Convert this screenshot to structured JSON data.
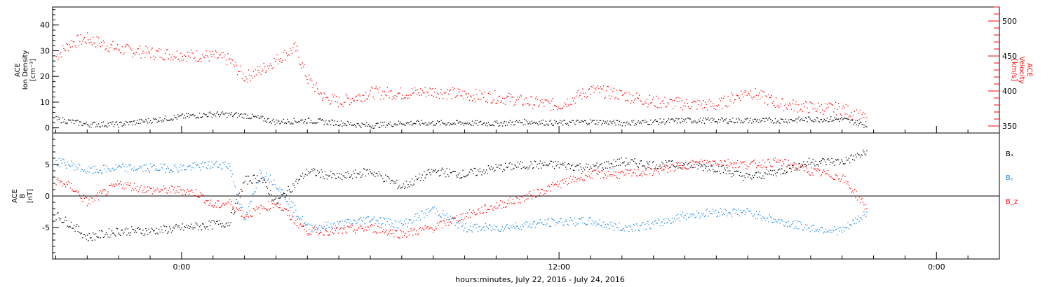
{
  "colors": {
    "black": "#000000",
    "red": "#ff0000",
    "blue": "#1e88e5"
  },
  "chart_data": [
    {
      "type": "scatter",
      "panel": "top",
      "left_axis": {
        "label_lines": [
          "ACE",
          "Ion Density",
          "[cm⁻³]"
        ],
        "ylim": [
          -2,
          47
        ],
        "ticks": [
          0,
          10,
          20,
          30,
          40
        ],
        "color": "#000000"
      },
      "right_axis": {
        "label_lines": [
          "ACE",
          "Velocity",
          "[km/s]"
        ],
        "ylim": [
          340,
          520
        ],
        "ticks": [
          350,
          400,
          450,
          500
        ],
        "color": "#ff0000"
      },
      "series": [
        {
          "axis": "left",
          "color": "#000000",
          "x": [
            -4,
            -3,
            -2,
            -1,
            0,
            1,
            2,
            3,
            4,
            5,
            6,
            7,
            8,
            9,
            10,
            11,
            12,
            13,
            14,
            15,
            16,
            17,
            18,
            19,
            20,
            21,
            21.8
          ],
          "y": [
            3.5,
            1.5,
            1.5,
            3,
            4.5,
            5.5,
            5,
            2.5,
            3,
            2,
            1,
            2,
            2,
            2,
            1.8,
            2.5,
            2,
            2.5,
            2,
            2.5,
            3,
            3,
            3,
            3,
            3.5,
            3.5,
            1
          ]
        },
        {
          "axis": "right",
          "color": "#ff0000",
          "x": [
            -4,
            -3.5,
            -3,
            -2,
            -1,
            0,
            1,
            1.5,
            2,
            2.5,
            3,
            3.6,
            4,
            4.5,
            5,
            6,
            7,
            8,
            9,
            10,
            11,
            12,
            13,
            14,
            15,
            16,
            17,
            18,
            19,
            20,
            21,
            21.8
          ],
          "y": [
            450,
            470,
            475,
            460,
            455,
            452,
            450,
            445,
            420,
            430,
            445,
            462,
            418,
            392,
            385,
            398,
            397,
            400,
            395,
            392,
            385,
            380,
            402,
            395,
            385,
            382,
            380,
            400,
            382,
            377,
            375,
            360
          ]
        }
      ]
    },
    {
      "type": "scatter",
      "panel": "bottom",
      "left_axis": {
        "label_lines": [
          "ACE",
          "B",
          "[nT]"
        ],
        "ylim": [
          -10,
          10
        ],
        "ticks": [
          -5,
          0,
          5
        ],
        "color": "#000000"
      },
      "legend": [
        {
          "name": "Bₓ",
          "color": "#000000"
        },
        {
          "name": "Bᵧ",
          "color": "#1e88e5"
        },
        {
          "name": "B_z",
          "color": "#ff0000"
        }
      ],
      "series": [
        {
          "name": "Bx",
          "color": "#000000",
          "x": [
            -4,
            -3.5,
            -3,
            -2,
            -1,
            0,
            1,
            1.5,
            2,
            2.5,
            3,
            4,
            5,
            6,
            7,
            8,
            9,
            10,
            11,
            12,
            13,
            14,
            15,
            16,
            17,
            18,
            19,
            20,
            21,
            21.8
          ],
          "y": [
            -3,
            -4.5,
            -6.5,
            -5.5,
            -5.5,
            -5,
            -4.5,
            -4.2,
            2.5,
            3,
            -1,
            4,
            3,
            4,
            1.5,
            4,
            3.5,
            4.5,
            5,
            5,
            4.5,
            5.5,
            5,
            5,
            4.5,
            3,
            4,
            5.5,
            5.5,
            7
          ]
        },
        {
          "name": "By",
          "color": "#1e88e5",
          "x": [
            -4,
            -3.5,
            -3,
            -2,
            -1,
            0,
            1,
            1.5,
            2,
            2.5,
            3,
            4,
            5,
            6,
            7,
            8,
            9,
            10,
            11,
            12,
            13,
            14,
            15,
            16,
            17,
            18,
            19,
            20,
            21,
            21.8
          ],
          "y": [
            5.5,
            5,
            4,
            4.5,
            4.5,
            4.5,
            5,
            5,
            -4,
            4,
            2,
            -5,
            -4.5,
            -3.5,
            -4.5,
            -2,
            -5,
            -5,
            -4.5,
            -4,
            -4,
            -5,
            -4.5,
            -3,
            -2.5,
            -2.5,
            -4,
            -5,
            -5.5,
            -2.5
          ]
        },
        {
          "name": "Bz",
          "color": "#ff0000",
          "x": [
            -4,
            -3.5,
            -3,
            -2,
            -1,
            0,
            0.5,
            1,
            1.5,
            2,
            2.5,
            3,
            3.5,
            4,
            5,
            6,
            7,
            8,
            9,
            10,
            11,
            12,
            13,
            14,
            15,
            16,
            17,
            18,
            19,
            20,
            21,
            21.8
          ],
          "y": [
            2.5,
            1.5,
            -1,
            2,
            1,
            1,
            0.5,
            -1.5,
            -1,
            -3,
            -2,
            -1,
            -3.5,
            -5.5,
            -5.5,
            -5,
            -6,
            -5,
            -3,
            -1.5,
            0,
            2,
            3.5,
            3.5,
            4,
            5,
            5.5,
            5,
            5.5,
            4,
            3,
            -2
          ]
        }
      ]
    }
  ],
  "x_axis": {
    "xlim": [
      -4.1,
      26
    ],
    "ticks": [
      0,
      12,
      24
    ],
    "tick_labels": [
      "0:00",
      "12:00",
      "0:00"
    ],
    "label": "hours:minutes, July 22, 2016 - July 24, 2016"
  }
}
